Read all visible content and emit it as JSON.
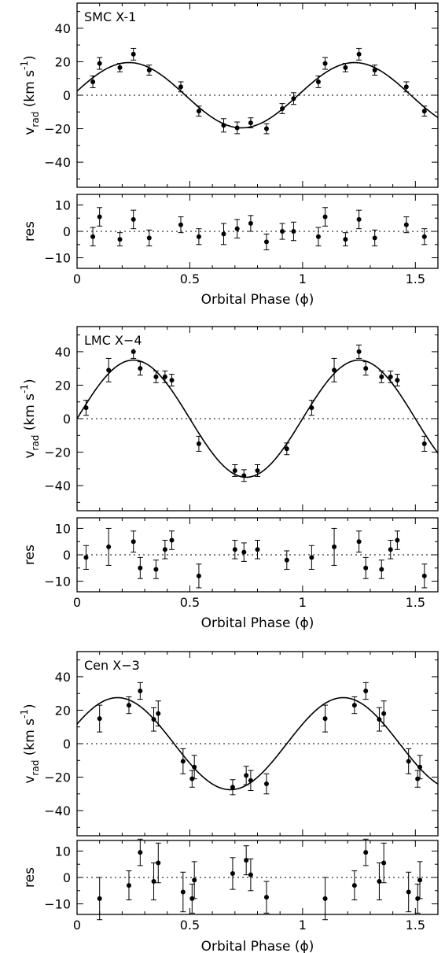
{
  "chart_data": [
    {
      "type": "scatter",
      "title": "SMC X-1",
      "xlabel": "Orbital Phase (ϕ)",
      "ylabel_main": "v_rad (km s^-1)",
      "ylabel_res": "res",
      "xlim": [
        0,
        1.6
      ],
      "ylim_main": [
        -55,
        55
      ],
      "ylim_res": [
        -14,
        14
      ],
      "x_ticks": [
        "0",
        "0.5",
        "1",
        "1.5"
      ],
      "y_ticks_main": [
        "40",
        "20",
        "0",
        "−20",
        "−40"
      ],
      "y_ticks_res": [
        "10",
        "0",
        "−10"
      ],
      "model": {
        "K": 19.5,
        "phase_of_max": 0.23
      },
      "rv_points": [
        {
          "x": 0.07,
          "y": 8,
          "err": 3.5
        },
        {
          "x": 0.1,
          "y": 19,
          "err": 3.5
        },
        {
          "x": 0.19,
          "y": 16.5,
          "err": 2.5
        },
        {
          "x": 0.25,
          "y": 24.5,
          "err": 3.5
        },
        {
          "x": 0.32,
          "y": 15,
          "err": 3
        },
        {
          "x": 0.46,
          "y": 5,
          "err": 3
        },
        {
          "x": 0.54,
          "y": -9.5,
          "err": 3
        },
        {
          "x": 0.65,
          "y": -18,
          "err": 4
        },
        {
          "x": 0.71,
          "y": -19.5,
          "err": 3.5
        },
        {
          "x": 0.77,
          "y": -16.5,
          "err": 3
        },
        {
          "x": 0.84,
          "y": -20,
          "err": 3
        },
        {
          "x": 0.91,
          "y": -8,
          "err": 3
        },
        {
          "x": 0.96,
          "y": -2,
          "err": 3.5
        },
        {
          "x": 1.07,
          "y": 8,
          "err": 3.5
        },
        {
          "x": 1.1,
          "y": 19,
          "err": 3.5
        },
        {
          "x": 1.19,
          "y": 16.5,
          "err": 2.5
        },
        {
          "x": 1.25,
          "y": 24.5,
          "err": 3.5
        },
        {
          "x": 1.32,
          "y": 15,
          "err": 3
        },
        {
          "x": 1.46,
          "y": 5,
          "err": 3
        },
        {
          "x": 1.54,
          "y": -9.5,
          "err": 3
        }
      ],
      "res_points": [
        {
          "x": 0.07,
          "y": -2,
          "err": 3.5
        },
        {
          "x": 0.1,
          "y": 5.5,
          "err": 3.5
        },
        {
          "x": 0.19,
          "y": -3,
          "err": 2.5
        },
        {
          "x": 0.25,
          "y": 4.5,
          "err": 3.5
        },
        {
          "x": 0.32,
          "y": -2.5,
          "err": 3
        },
        {
          "x": 0.46,
          "y": 2.5,
          "err": 3
        },
        {
          "x": 0.54,
          "y": -2,
          "err": 3
        },
        {
          "x": 0.65,
          "y": -1,
          "err": 4
        },
        {
          "x": 0.71,
          "y": 1,
          "err": 3.5
        },
        {
          "x": 0.77,
          "y": 3,
          "err": 3
        },
        {
          "x": 0.84,
          "y": -4,
          "err": 3
        },
        {
          "x": 0.91,
          "y": 0,
          "err": 3
        },
        {
          "x": 0.96,
          "y": 0,
          "err": 3.5
        },
        {
          "x": 1.07,
          "y": -2,
          "err": 3.5
        },
        {
          "x": 1.1,
          "y": 5.5,
          "err": 3.5
        },
        {
          "x": 1.19,
          "y": -3,
          "err": 2.5
        },
        {
          "x": 1.25,
          "y": 4.5,
          "err": 3.5
        },
        {
          "x": 1.32,
          "y": -2.5,
          "err": 3
        },
        {
          "x": 1.46,
          "y": 2.5,
          "err": 3
        },
        {
          "x": 1.54,
          "y": -2,
          "err": 3
        }
      ]
    },
    {
      "type": "scatter",
      "title": "LMC X−4",
      "xlabel": "Orbital Phase (ϕ)",
      "ylabel_main": "v_rad (km s^-1)",
      "ylabel_res": "res",
      "xlim": [
        0,
        1.6
      ],
      "ylim_main": [
        -55,
        55
      ],
      "ylim_res": [
        -14,
        14
      ],
      "x_ticks": [
        "0",
        "0.5",
        "1",
        "1.5"
      ],
      "y_ticks_main": [
        "40",
        "20",
        "0",
        "−20",
        "−40"
      ],
      "y_ticks_res": [
        "10",
        "0",
        "−10"
      ],
      "model": {
        "K": 35,
        "phase_of_max": 0.25
      },
      "rv_points": [
        {
          "x": 0.04,
          "y": 6.5,
          "err": 4.5
        },
        {
          "x": 0.14,
          "y": 29,
          "err": 7
        },
        {
          "x": 0.25,
          "y": 40,
          "err": 4
        },
        {
          "x": 0.28,
          "y": 30,
          "err": 4
        },
        {
          "x": 0.35,
          "y": 25,
          "err": 3.5
        },
        {
          "x": 0.39,
          "y": 25,
          "err": 3.5
        },
        {
          "x": 0.42,
          "y": 23,
          "err": 3.5
        },
        {
          "x": 0.54,
          "y": -15,
          "err": 4.5
        },
        {
          "x": 0.7,
          "y": -31,
          "err": 3.5
        },
        {
          "x": 0.74,
          "y": -34,
          "err": 3.5
        },
        {
          "x": 0.8,
          "y": -31,
          "err": 3.5
        },
        {
          "x": 0.93,
          "y": -18,
          "err": 3.5
        },
        {
          "x": 1.04,
          "y": 6.5,
          "err": 4.5
        },
        {
          "x": 1.14,
          "y": 29,
          "err": 7
        },
        {
          "x": 1.25,
          "y": 40,
          "err": 4
        },
        {
          "x": 1.28,
          "y": 30,
          "err": 4
        },
        {
          "x": 1.35,
          "y": 25,
          "err": 3.5
        },
        {
          "x": 1.39,
          "y": 25,
          "err": 3.5
        },
        {
          "x": 1.42,
          "y": 23,
          "err": 3.5
        },
        {
          "x": 1.54,
          "y": -15,
          "err": 4.5
        }
      ],
      "res_points": [
        {
          "x": 0.04,
          "y": -1,
          "err": 4.5
        },
        {
          "x": 0.14,
          "y": 3,
          "err": 7
        },
        {
          "x": 0.25,
          "y": 5,
          "err": 4
        },
        {
          "x": 0.28,
          "y": -5,
          "err": 4
        },
        {
          "x": 0.35,
          "y": -5.5,
          "err": 3.5
        },
        {
          "x": 0.39,
          "y": 2,
          "err": 3.5
        },
        {
          "x": 0.42,
          "y": 5.5,
          "err": 3.5
        },
        {
          "x": 0.54,
          "y": -8,
          "err": 4.5
        },
        {
          "x": 0.7,
          "y": 2,
          "err": 3.5
        },
        {
          "x": 0.74,
          "y": 1,
          "err": 3.5
        },
        {
          "x": 0.8,
          "y": 2,
          "err": 3.5
        },
        {
          "x": 0.93,
          "y": -2,
          "err": 3.5
        },
        {
          "x": 1.04,
          "y": -1,
          "err": 4.5
        },
        {
          "x": 1.14,
          "y": 3,
          "err": 7
        },
        {
          "x": 1.25,
          "y": 5,
          "err": 4
        },
        {
          "x": 1.28,
          "y": -5,
          "err": 4
        },
        {
          "x": 1.35,
          "y": -5.5,
          "err": 3.5
        },
        {
          "x": 1.39,
          "y": 2,
          "err": 3.5
        },
        {
          "x": 1.42,
          "y": 5.5,
          "err": 3.5
        },
        {
          "x": 1.54,
          "y": -8,
          "err": 4.5
        }
      ]
    },
    {
      "type": "scatter",
      "title": "Cen X−3",
      "xlabel": "Orbital Phase (ϕ)",
      "ylabel_main": "v_rad (km s^-1)",
      "ylabel_res": "res",
      "xlim": [
        0,
        1.6
      ],
      "ylim_main": [
        -55,
        55
      ],
      "ylim_res": [
        -14,
        14
      ],
      "x_ticks": [
        "0",
        "0.5",
        "1",
        "1.5"
      ],
      "y_ticks_main": [
        "40",
        "20",
        "0",
        "−20",
        "−40"
      ],
      "y_ticks_res": [
        "10",
        "0",
        "−10"
      ],
      "model": {
        "K": 27.5,
        "phase_of_max": 0.18
      },
      "rv_points": [
        {
          "x": 0.1,
          "y": 15,
          "err": 8
        },
        {
          "x": 0.23,
          "y": 23,
          "err": 5
        },
        {
          "x": 0.28,
          "y": 31.5,
          "err": 5
        },
        {
          "x": 0.34,
          "y": 14.5,
          "err": 7
        },
        {
          "x": 0.36,
          "y": 18,
          "err": 7.5
        },
        {
          "x": 0.47,
          "y": -10.5,
          "err": 7.5
        },
        {
          "x": 0.51,
          "y": -21,
          "err": 5
        },
        {
          "x": 0.52,
          "y": -14,
          "err": 7
        },
        {
          "x": 0.69,
          "y": -26,
          "err": 4.5
        },
        {
          "x": 0.75,
          "y": -19,
          "err": 5.5
        },
        {
          "x": 0.77,
          "y": -22,
          "err": 6
        },
        {
          "x": 0.84,
          "y": -24,
          "err": 6
        },
        {
          "x": 1.1,
          "y": 15,
          "err": 8
        },
        {
          "x": 1.23,
          "y": 23,
          "err": 5
        },
        {
          "x": 1.28,
          "y": 31.5,
          "err": 5
        },
        {
          "x": 1.34,
          "y": 14.5,
          "err": 7
        },
        {
          "x": 1.36,
          "y": 18,
          "err": 7.5
        },
        {
          "x": 1.47,
          "y": -10.5,
          "err": 7.5
        },
        {
          "x": 1.51,
          "y": -21,
          "err": 5
        },
        {
          "x": 1.52,
          "y": -14,
          "err": 7
        }
      ],
      "res_points": [
        {
          "x": 0.1,
          "y": -8,
          "err": 8
        },
        {
          "x": 0.23,
          "y": -3,
          "err": 5.5
        },
        {
          "x": 0.28,
          "y": 9.5,
          "err": 5
        },
        {
          "x": 0.34,
          "y": -1.5,
          "err": 7
        },
        {
          "x": 0.36,
          "y": 5.5,
          "err": 7.5
        },
        {
          "x": 0.47,
          "y": -5.5,
          "err": 7.5
        },
        {
          "x": 0.51,
          "y": -8,
          "err": 5.5
        },
        {
          "x": 0.52,
          "y": -1,
          "err": 7
        },
        {
          "x": 0.69,
          "y": 1.5,
          "err": 6
        },
        {
          "x": 0.75,
          "y": 6.5,
          "err": 5.5
        },
        {
          "x": 0.77,
          "y": 1,
          "err": 6
        },
        {
          "x": 0.84,
          "y": -7.5,
          "err": 6
        },
        {
          "x": 1.1,
          "y": -8,
          "err": 8
        },
        {
          "x": 1.23,
          "y": -3,
          "err": 5.5
        },
        {
          "x": 1.28,
          "y": 9.5,
          "err": 5
        },
        {
          "x": 1.34,
          "y": -1.5,
          "err": 7
        },
        {
          "x": 1.36,
          "y": 5.5,
          "err": 7.5
        },
        {
          "x": 1.47,
          "y": -5.5,
          "err": 7.5
        },
        {
          "x": 1.51,
          "y": -8,
          "err": 5.5
        },
        {
          "x": 1.52,
          "y": -1,
          "err": 7
        }
      ]
    }
  ]
}
